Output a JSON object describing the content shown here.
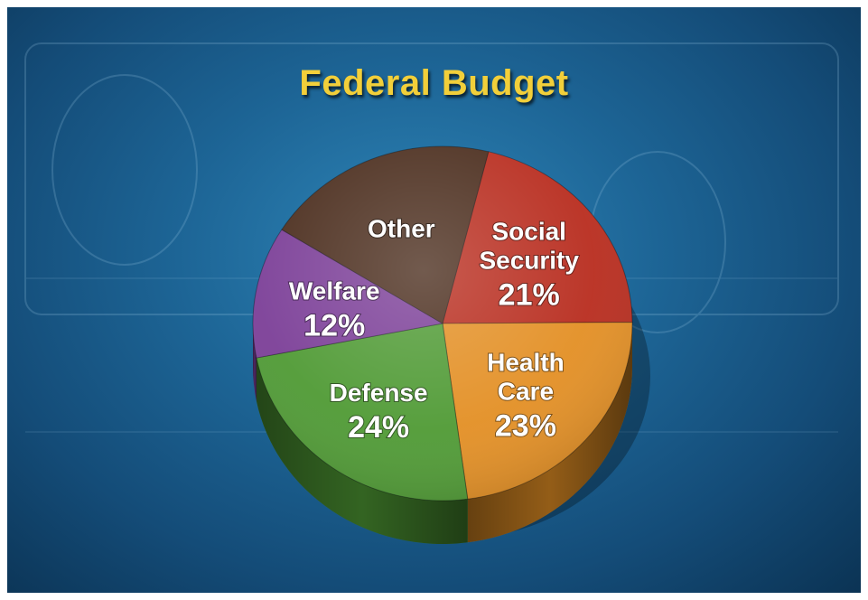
{
  "slide": {
    "title": "Federal Budget"
  },
  "chart_data": {
    "type": "pie",
    "title": "Federal Budget",
    "slices": [
      {
        "category": "Social Security",
        "value": 21,
        "label_lines": [
          "Social",
          "Security",
          "21%"
        ],
        "color": "#b82c1e"
      },
      {
        "category": "Health Care",
        "value": 23,
        "label_lines": [
          "Health",
          "Care",
          "23%"
        ],
        "color": "#e38f24"
      },
      {
        "category": "Defense",
        "value": 24,
        "label_lines": [
          "Defense",
          "24%"
        ],
        "color": "#4f9a34"
      },
      {
        "category": "Welfare",
        "value": 12,
        "label_lines": [
          "Welfare",
          "12%"
        ],
        "color": "#7b3e97"
      },
      {
        "category": "Other",
        "value": 20,
        "label_lines": [
          "Other"
        ],
        "color": "#4a2c1c"
      }
    ],
    "background_colors": [
      "#2f86b8",
      "#0b3354"
    ],
    "title_color": "#f2cf3a"
  }
}
